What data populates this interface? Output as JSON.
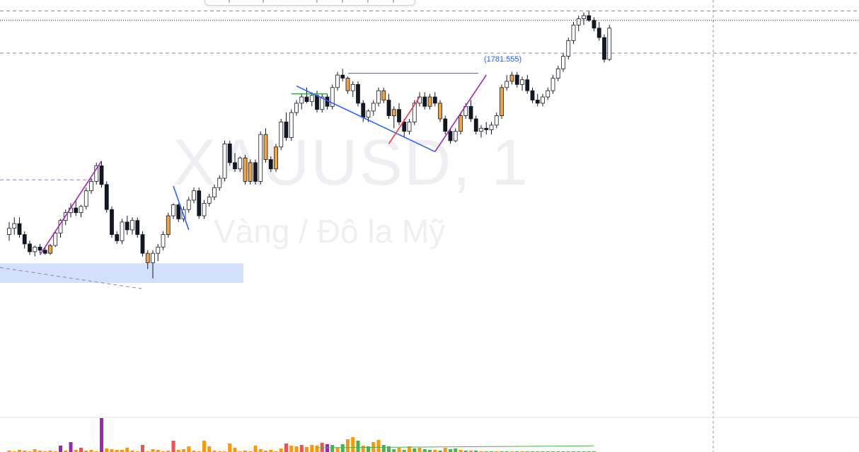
{
  "chart_data": {
    "type": "candlestick",
    "watermark": {
      "symbol": "XAUUSD, 1",
      "description": "Vàng / Đô la Mỹ"
    },
    "marked_level": {
      "label": "(1781.555)",
      "value": 1781.555,
      "color": "#2962ff"
    },
    "colors": {
      "up_body": "#ffffff",
      "down_body": "#131722",
      "wick": "#131722",
      "highlight_candle": "#f0a444",
      "zigzag_purple": "#9c27b0",
      "zigzag_blue": "#2962ff",
      "zigzag_red": "#f23645",
      "zigzag_green": "#43a047",
      "zone_fill": "#d3e0fc",
      "volume_orange": "#ff9800",
      "volume_red": "#ef5350",
      "volume_purple": "#9c27b0",
      "volume_green": "#4caf50"
    },
    "price_range": [
      1770.6,
      1783.9
    ],
    "candles": [
      [
        1776.4,
        1776.8,
        1776.2,
        1776.6
      ],
      [
        1776.6,
        1776.95,
        1776.4,
        1776.75
      ],
      [
        1776.75,
        1776.95,
        1776.3,
        1776.4
      ],
      [
        1776.4,
        1776.5,
        1775.95,
        1776.1
      ],
      [
        1776.1,
        1776.2,
        1775.75,
        1775.85
      ],
      [
        1775.85,
        1776.05,
        1775.7,
        1776.0
      ],
      [
        1776.0,
        1776.1,
        1775.8,
        1775.9
      ],
      [
        1775.9,
        1776.0,
        1775.75,
        1775.8
      ],
      [
        1775.8,
        1776.1,
        1775.75,
        1776.05
      ],
      [
        1776.05,
        1776.5,
        1776.0,
        1776.45
      ],
      [
        1776.45,
        1776.9,
        1776.3,
        1776.85
      ],
      [
        1776.85,
        1777.2,
        1776.7,
        1777.1
      ],
      [
        1777.1,
        1777.4,
        1776.95,
        1777.25
      ],
      [
        1777.25,
        1777.5,
        1777.0,
        1777.1
      ],
      [
        1777.1,
        1777.35,
        1776.95,
        1777.3
      ],
      [
        1777.3,
        1777.9,
        1777.2,
        1777.8
      ],
      [
        1777.8,
        1778.2,
        1777.7,
        1778.1
      ],
      [
        1778.1,
        1778.7,
        1778.0,
        1778.6
      ],
      [
        1778.6,
        1778.75,
        1777.9,
        1778.0
      ],
      [
        1778.0,
        1778.1,
        1777.1,
        1777.2
      ],
      [
        1777.2,
        1777.3,
        1776.3,
        1776.4
      ],
      [
        1776.4,
        1776.5,
        1776.1,
        1776.2
      ],
      [
        1776.2,
        1776.9,
        1776.1,
        1776.8
      ],
      [
        1776.8,
        1777.0,
        1776.4,
        1776.55
      ],
      [
        1776.55,
        1776.95,
        1776.4,
        1776.85
      ],
      [
        1776.85,
        1776.95,
        1776.3,
        1776.4
      ],
      [
        1776.4,
        1776.5,
        1775.7,
        1775.8
      ],
      [
        1775.8,
        1775.9,
        1775.3,
        1775.5
      ],
      [
        1775.5,
        1775.9,
        1775.0,
        1775.8
      ],
      [
        1775.8,
        1776.1,
        1775.55,
        1776.0
      ],
      [
        1776.0,
        1776.5,
        1775.9,
        1776.4
      ],
      [
        1776.4,
        1777.1,
        1776.3,
        1777.0
      ],
      [
        1777.0,
        1777.4,
        1776.9,
        1777.35
      ],
      [
        1777.35,
        1777.4,
        1776.8,
        1776.9
      ],
      [
        1776.9,
        1777.3,
        1776.8,
        1777.2
      ],
      [
        1777.2,
        1777.6,
        1777.1,
        1777.5
      ],
      [
        1777.5,
        1777.9,
        1777.4,
        1777.8
      ],
      [
        1777.8,
        1777.9,
        1776.9,
        1777.0
      ],
      [
        1777.0,
        1777.5,
        1776.9,
        1777.4
      ],
      [
        1777.4,
        1777.7,
        1777.3,
        1777.6
      ],
      [
        1777.6,
        1778.0,
        1777.5,
        1777.9
      ],
      [
        1777.9,
        1778.3,
        1777.8,
        1778.2
      ],
      [
        1778.2,
        1779.4,
        1778.1,
        1779.3
      ],
      [
        1779.3,
        1779.4,
        1778.6,
        1778.7
      ],
      [
        1778.7,
        1779.0,
        1778.4,
        1778.5
      ],
      [
        1778.5,
        1778.9,
        1778.4,
        1778.85
      ],
      [
        1778.85,
        1778.95,
        1778.0,
        1778.1
      ],
      [
        1778.1,
        1778.8,
        1778.0,
        1778.7
      ],
      [
        1778.7,
        1778.8,
        1778.0,
        1778.1
      ],
      [
        1778.1,
        1779.7,
        1778.0,
        1779.6
      ],
      [
        1779.6,
        1779.8,
        1778.7,
        1778.8
      ],
      [
        1778.8,
        1778.9,
        1778.4,
        1778.5
      ],
      [
        1778.5,
        1779.3,
        1778.4,
        1779.2
      ],
      [
        1779.2,
        1780.1,
        1779.1,
        1780.0
      ],
      [
        1780.0,
        1780.3,
        1779.4,
        1779.5
      ],
      [
        1779.5,
        1780.4,
        1779.4,
        1780.3
      ],
      [
        1780.3,
        1780.7,
        1780.2,
        1780.6
      ],
      [
        1780.6,
        1780.9,
        1780.4,
        1780.8
      ],
      [
        1780.8,
        1781.1,
        1780.6,
        1780.65
      ],
      [
        1780.65,
        1780.95,
        1780.5,
        1780.85
      ],
      [
        1780.85,
        1781.0,
        1780.3,
        1780.4
      ],
      [
        1780.4,
        1780.9,
        1780.3,
        1780.8
      ],
      [
        1780.8,
        1780.9,
        1780.4,
        1780.5
      ],
      [
        1780.5,
        1781.2,
        1780.4,
        1781.1
      ],
      [
        1781.1,
        1781.6,
        1781.0,
        1781.5
      ],
      [
        1781.5,
        1781.7,
        1781.3,
        1781.4
      ],
      [
        1781.4,
        1781.45,
        1780.9,
        1781.0
      ],
      [
        1781.0,
        1781.3,
        1780.8,
        1781.2
      ],
      [
        1781.2,
        1781.3,
        1780.5,
        1780.6
      ],
      [
        1780.6,
        1780.7,
        1780.0,
        1780.15
      ],
      [
        1780.15,
        1780.4,
        1780.0,
        1780.35
      ],
      [
        1780.35,
        1780.7,
        1780.2,
        1780.6
      ],
      [
        1780.6,
        1781.1,
        1780.5,
        1781.0
      ],
      [
        1781.0,
        1781.1,
        1780.6,
        1780.7
      ],
      [
        1780.7,
        1780.9,
        1780.1,
        1780.2
      ],
      [
        1780.2,
        1780.5,
        1779.8,
        1780.4
      ],
      [
        1780.4,
        1780.6,
        1779.9,
        1780.0
      ],
      [
        1780.0,
        1780.1,
        1779.5,
        1779.7
      ],
      [
        1779.7,
        1780.1,
        1779.6,
        1780.0
      ],
      [
        1780.0,
        1780.7,
        1779.9,
        1780.6
      ],
      [
        1780.6,
        1780.95,
        1780.5,
        1780.8
      ],
      [
        1780.8,
        1780.95,
        1780.4,
        1780.5
      ],
      [
        1780.5,
        1780.9,
        1780.4,
        1780.8
      ],
      [
        1780.8,
        1780.95,
        1780.5,
        1780.6
      ],
      [
        1780.6,
        1780.7,
        1780.0,
        1780.1
      ],
      [
        1780.1,
        1780.2,
        1779.6,
        1779.7
      ],
      [
        1779.7,
        1779.8,
        1779.3,
        1779.4
      ],
      [
        1779.4,
        1779.8,
        1779.35,
        1779.7
      ],
      [
        1779.7,
        1780.3,
        1779.6,
        1780.2
      ],
      [
        1780.2,
        1780.6,
        1780.1,
        1780.5
      ],
      [
        1780.5,
        1780.7,
        1780.0,
        1780.1
      ],
      [
        1780.1,
        1780.2,
        1779.6,
        1779.7
      ],
      [
        1779.7,
        1779.9,
        1779.5,
        1779.8
      ],
      [
        1779.8,
        1780.0,
        1779.6,
        1779.75
      ],
      [
        1779.75,
        1780.0,
        1779.6,
        1779.9
      ],
      [
        1779.9,
        1780.3,
        1779.8,
        1780.2
      ],
      [
        1780.2,
        1781.2,
        1780.1,
        1781.1
      ],
      [
        1781.1,
        1781.5,
        1781.0,
        1781.3
      ],
      [
        1781.3,
        1781.6,
        1781.2,
        1781.5
      ],
      [
        1781.5,
        1781.6,
        1781.1,
        1781.2
      ],
      [
        1781.2,
        1781.45,
        1781.0,
        1781.35
      ],
      [
        1781.35,
        1781.5,
        1780.9,
        1781.0
      ],
      [
        1781.0,
        1781.1,
        1780.6,
        1780.7
      ],
      [
        1780.7,
        1780.9,
        1780.5,
        1780.6
      ],
      [
        1780.6,
        1780.9,
        1780.5,
        1780.8
      ],
      [
        1780.8,
        1781.1,
        1780.7,
        1781.0
      ],
      [
        1781.0,
        1781.5,
        1780.9,
        1781.4
      ],
      [
        1781.4,
        1781.8,
        1781.3,
        1781.7
      ],
      [
        1781.7,
        1782.2,
        1781.6,
        1782.1
      ],
      [
        1782.1,
        1782.7,
        1782.0,
        1782.6
      ],
      [
        1782.6,
        1783.2,
        1782.5,
        1783.1
      ],
      [
        1783.1,
        1783.4,
        1782.9,
        1783.3
      ],
      [
        1783.3,
        1783.5,
        1783.1,
        1783.4
      ],
      [
        1783.4,
        1783.55,
        1783.2,
        1783.25
      ],
      [
        1783.25,
        1783.35,
        1782.9,
        1783.0
      ],
      [
        1783.0,
        1783.2,
        1782.6,
        1782.7
      ],
      [
        1782.7,
        1782.8,
        1781.9,
        1782.0
      ],
      [
        1782.0,
        1783.1,
        1781.95,
        1783.0
      ]
    ],
    "highlight_candles": [
      8,
      27,
      31,
      46,
      47,
      50,
      52,
      66,
      73,
      75,
      82,
      84,
      88,
      96,
      98
    ],
    "zigzags": [
      {
        "color": "purple",
        "points": [
          [
            6,
            1775.75
          ],
          [
            18,
            1778.75
          ]
        ]
      },
      {
        "color": "blue",
        "points": [
          [
            32,
            1777.95
          ],
          [
            35,
            1776.55
          ]
        ]
      },
      {
        "color": "green",
        "points": [
          [
            55,
            1780.9
          ],
          [
            62,
            1780.9
          ]
        ]
      },
      {
        "color": "blue",
        "points": [
          [
            56,
            1781.15
          ],
          [
            83,
            1779.05
          ]
        ]
      },
      {
        "color": "red",
        "points": [
          [
            74,
            1779.3
          ],
          [
            80,
            1780.8
          ]
        ]
      },
      {
        "color": "purple",
        "points": [
          [
            83,
            1779.05
          ],
          [
            93,
            1781.5
          ]
        ]
      }
    ],
    "levels": [
      {
        "price": 1783.55,
        "style": "dashed-purple"
      },
      {
        "price": 1783.25,
        "style": "dotted-dark"
      },
      {
        "price": 1782.2,
        "style": "dashed-purple"
      },
      {
        "price": 1778.15,
        "style": "dashed-purple",
        "left_segment": true
      }
    ],
    "zone": {
      "from_price": 1775.48,
      "to_price": 1774.85
    },
    "volume": [
      2,
      1,
      3,
      2,
      1,
      4,
      2,
      1,
      2,
      1,
      9,
      2,
      14,
      3,
      6,
      2,
      3,
      1,
      48,
      5,
      4,
      3,
      3,
      6,
      2,
      1,
      10,
      1,
      4,
      3,
      1,
      2,
      16,
      3,
      4,
      8,
      2,
      1,
      16,
      8,
      2,
      1,
      1,
      12,
      6,
      1,
      2,
      1,
      9,
      4,
      2,
      3,
      1,
      5,
      12,
      9,
      8,
      10,
      7,
      10,
      9,
      13,
      11,
      10,
      6,
      11,
      18,
      21,
      16,
      9,
      8,
      14,
      17,
      10,
      8,
      4,
      6,
      3,
      8,
      5,
      6,
      4,
      3,
      3,
      2,
      6,
      4,
      5,
      3,
      2,
      2,
      2,
      1,
      1,
      1,
      1,
      1,
      1,
      1,
      1,
      1,
      1,
      1,
      1,
      1,
      1,
      1,
      1,
      1,
      1,
      1,
      1,
      1,
      1,
      1
    ],
    "volume_colors": [
      "orange",
      "orange",
      "orange",
      "orange",
      "orange",
      "orange",
      "orange",
      "orange",
      "orange",
      "orange",
      "purple",
      "orange",
      "purple",
      "orange",
      "red",
      "orange",
      "orange",
      "orange",
      "purple",
      "orange",
      "orange",
      "orange",
      "orange",
      "orange",
      "orange",
      "orange",
      "red",
      "orange",
      "orange",
      "orange",
      "orange",
      "orange",
      "red",
      "orange",
      "orange",
      "orange",
      "orange",
      "orange",
      "orange",
      "orange",
      "orange",
      "orange",
      "orange",
      "orange",
      "orange",
      "orange",
      "orange",
      "orange",
      "orange",
      "orange",
      "orange",
      "orange",
      "orange",
      "orange",
      "red",
      "orange",
      "orange",
      "red",
      "orange",
      "orange",
      "orange",
      "red",
      "purple",
      "green",
      "orange",
      "green",
      "orange",
      "orange",
      "green",
      "orange",
      "green",
      "orange",
      "orange",
      "green",
      "green",
      "green",
      "orange",
      "green",
      "orange",
      "green",
      "orange",
      "green",
      "green",
      "orange",
      "green",
      "orange",
      "green",
      "green",
      "orange",
      "green",
      "orange",
      "green",
      "orange",
      "green",
      "green",
      "orange",
      "green",
      "green",
      "orange",
      "green",
      "orange",
      "green",
      "green",
      "green",
      "green",
      "green",
      "green",
      "green",
      "green",
      "green",
      "green",
      "green",
      "green",
      "green",
      "green"
    ]
  }
}
